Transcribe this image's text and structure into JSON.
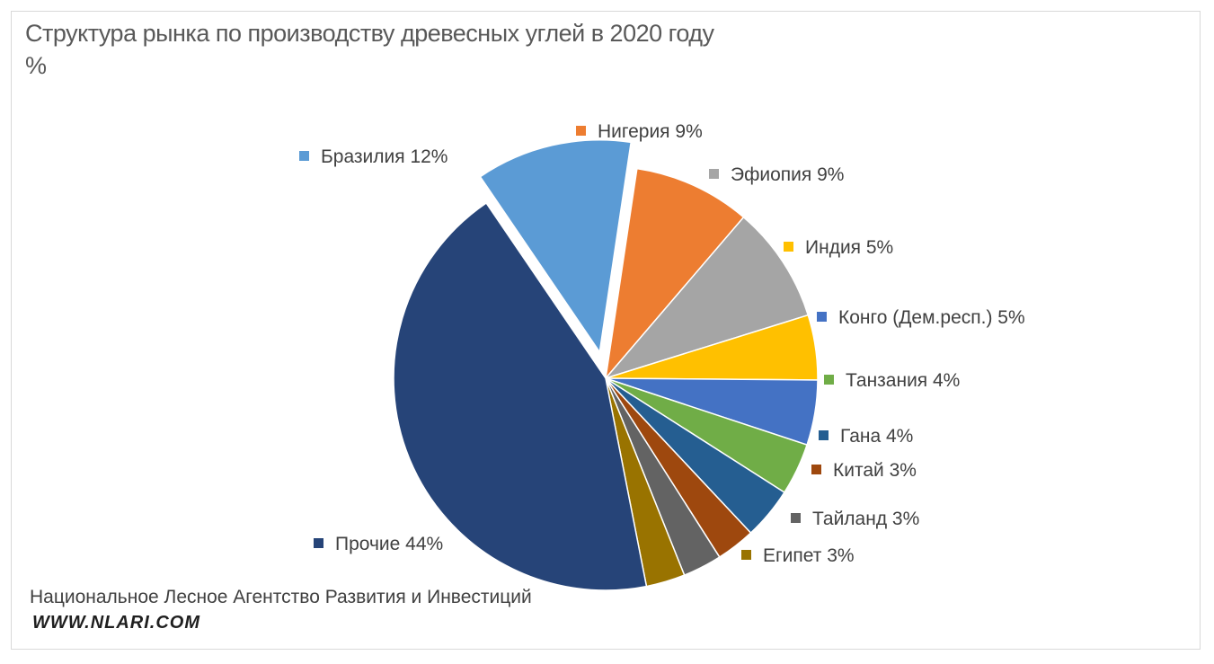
{
  "chart_data": {
    "type": "pie",
    "title": "Структура рынка по производству древесных углей в 2020 году",
    "subtitle": "%",
    "slices": [
      {
        "name": "Нигерия",
        "value": 9,
        "label": "Нигерия 9%",
        "color": "#ED7D31"
      },
      {
        "name": "Эфиопия",
        "value": 9,
        "label": "Эфиопия 9%",
        "color": "#A5A5A5"
      },
      {
        "name": "Индия",
        "value": 5,
        "label": "Индия 5%",
        "color": "#FFC000"
      },
      {
        "name": "Конго (Дем.респ.)",
        "value": 5,
        "label": "Конго (Дем.респ.) 5%",
        "color": "#4472C4"
      },
      {
        "name": "Танзания",
        "value": 4,
        "label": "Танзания 4%",
        "color": "#70AD47"
      },
      {
        "name": "Гана",
        "value": 4,
        "label": "Гана 4%",
        "color": "#255E91"
      },
      {
        "name": "Китай",
        "value": 3,
        "label": "Китай 3%",
        "color": "#9E480E"
      },
      {
        "name": "Тайланд",
        "value": 3,
        "label": "Тайланд 3%",
        "color": "#636363"
      },
      {
        "name": "Египет",
        "value": 3,
        "label": "Египет 3%",
        "color": "#997300"
      },
      {
        "name": "Прочие",
        "value": 44,
        "label": "Прочие 44%",
        "color": "#264478"
      },
      {
        "name": "Бразилия",
        "value": 12,
        "label": "Бразилия 12%",
        "color": "#5B9BD5",
        "exploded": true
      }
    ]
  },
  "footer": {
    "source": "Национальное Лесное Агентство Развития и Инвестиций",
    "site": "WWW.NLARI.COM"
  }
}
